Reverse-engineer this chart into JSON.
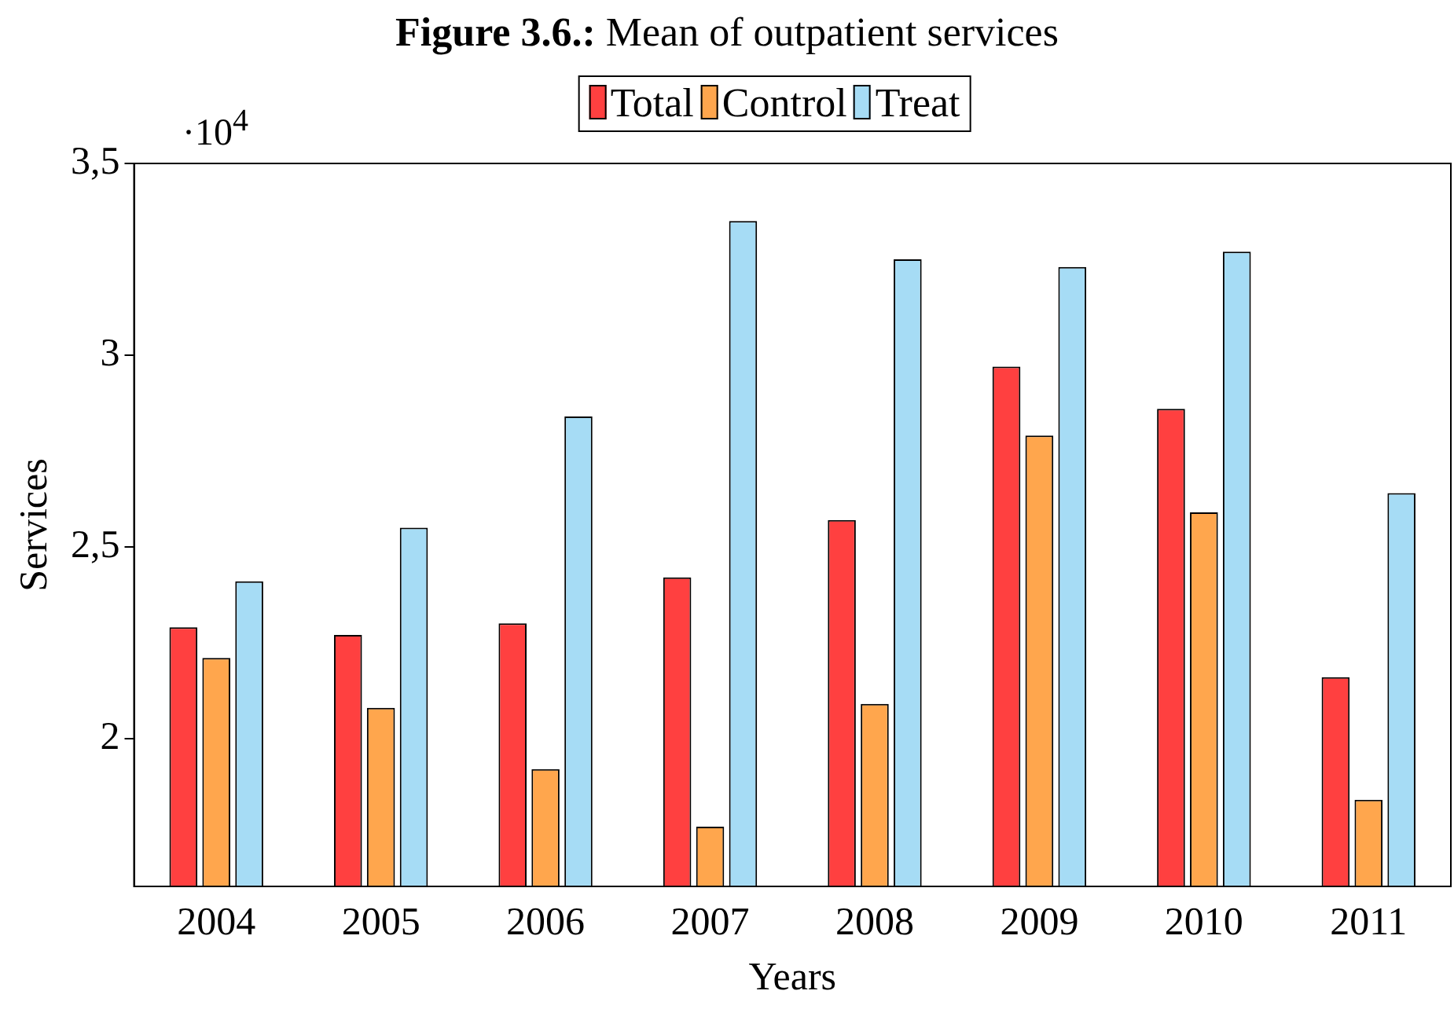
{
  "chart_data": {
    "type": "bar",
    "title": "Figure 3.6.: Mean of outpatient services",
    "xlabel": "Years",
    "ylabel": "Services",
    "categories": [
      "2004",
      "2005",
      "2006",
      "2007",
      "2008",
      "2009",
      "2010",
      "2011"
    ],
    "series": [
      {
        "name": "Total",
        "color": "#ff4040",
        "values": [
          2.29,
          2.27,
          2.3,
          2.42,
          2.57,
          2.97,
          2.86,
          2.16
        ]
      },
      {
        "name": "Control",
        "color": "#ffa64d",
        "values": [
          2.21,
          2.08,
          1.92,
          1.77,
          2.09,
          2.79,
          2.59,
          1.84
        ]
      },
      {
        "name": "Treat",
        "color": "#a6dcf5",
        "values": [
          2.41,
          2.55,
          2.84,
          3.35,
          3.25,
          3.23,
          3.27,
          2.64
        ]
      }
    ],
    "ylim": [
      1.614,
      3.5
    ],
    "yticks": [
      2,
      {
        "value": 2.5,
        "label": "2,5"
      },
      3,
      {
        "value": 3.5,
        "label": "3,5"
      }
    ],
    "annotations": [
      "·10$^{4}$"
    ],
    "grid": false,
    "legend": "top"
  }
}
